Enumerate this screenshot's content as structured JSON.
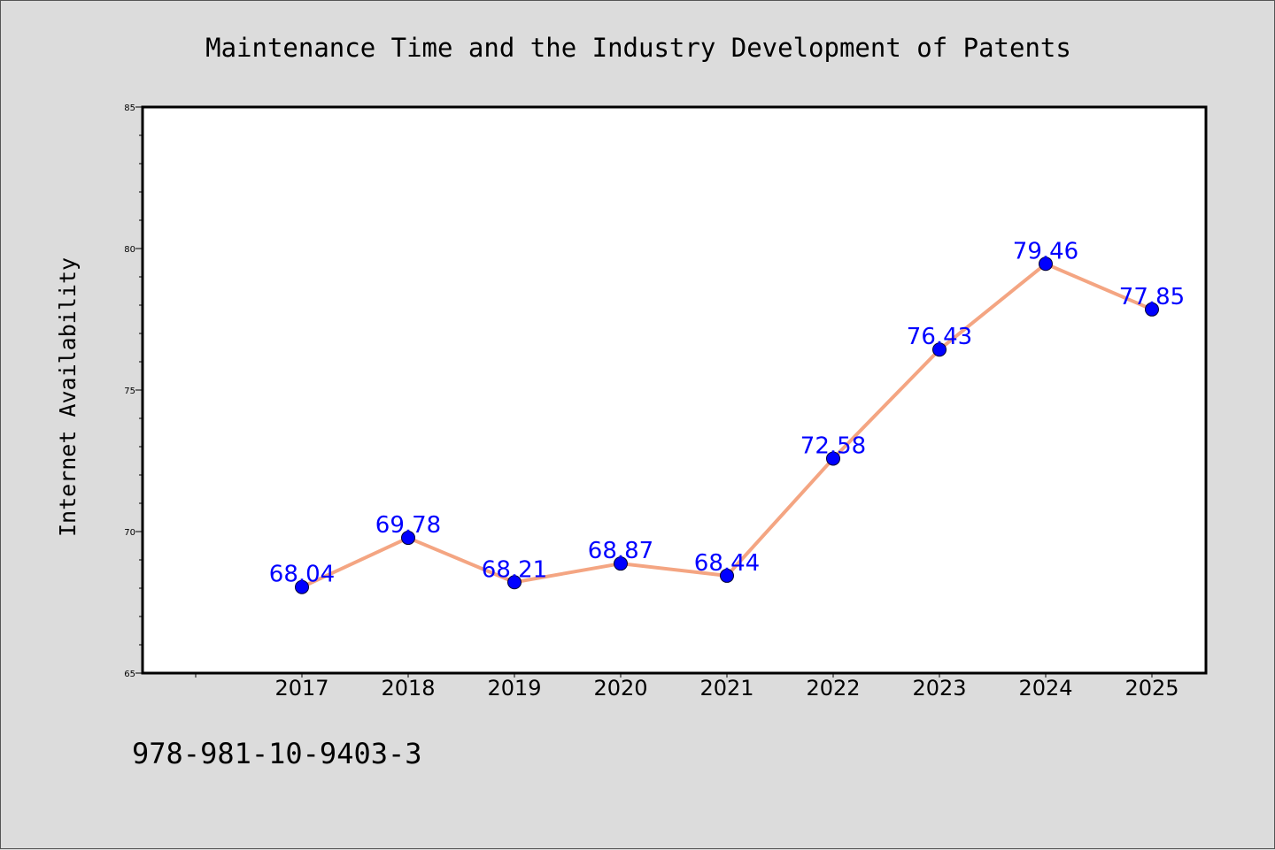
{
  "chart_data": {
    "type": "line",
    "title": "Maintenance Time and the Industry Development of Patents",
    "xlabel": "",
    "ylabel": "Internet Availability",
    "categories": [
      "2017",
      "2018",
      "2019",
      "2020",
      "2021",
      "2022",
      "2023",
      "2024",
      "2025"
    ],
    "series": [
      {
        "values": [
          68.04,
          69.78,
          68.21,
          68.87,
          68.44,
          72.58,
          76.43,
          79.46,
          77.85
        ],
        "labels": [
          "68.04",
          "69.78",
          "68.21",
          "68.87",
          "68.44",
          "72.58",
          "76.43",
          "79.46",
          "77.85"
        ],
        "line_color": "#f4a582",
        "marker_color": "#0000ff",
        "label_color": "#0000ff"
      }
    ],
    "ylim": [
      65,
      85
    ],
    "yticks": [
      "65",
      "70",
      "75",
      "80",
      "85"
    ],
    "grid": false,
    "legend": "none"
  },
  "footer": {
    "isbn": "978-981-10-9403-3"
  }
}
